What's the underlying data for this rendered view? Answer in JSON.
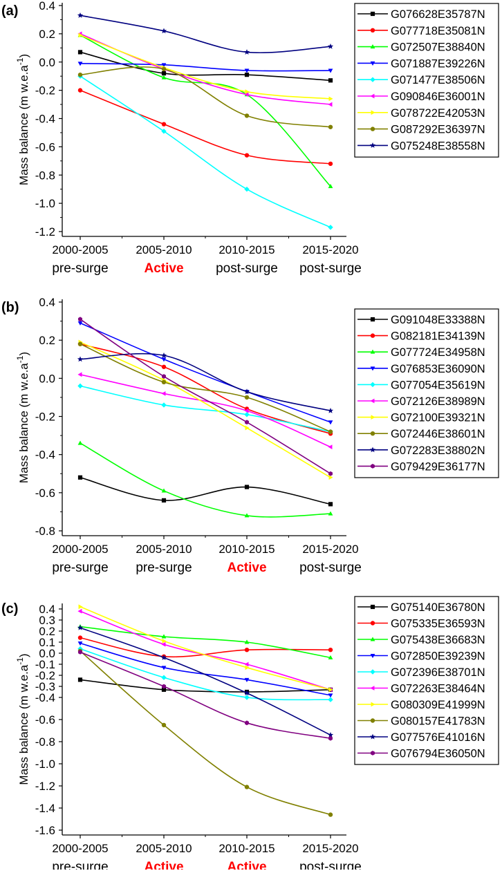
{
  "figure": {
    "background": "#ffffff"
  },
  "chart_data": [
    {
      "type": "line",
      "panel_label": "(a)",
      "categories": [
        "2000-2005",
        "2005-2010",
        "2010-2015",
        "2015-2020"
      ],
      "phases": [
        "pre-surge",
        "Active",
        "post-surge",
        "post-surge"
      ],
      "ylabel_main": "Mass balance (m w.e.a",
      "ylabel_sup": "-1",
      "ylabel_close": ")",
      "ylim": [
        -1.2,
        0.4
      ],
      "yticks": [
        "0.4",
        "0.2",
        "0.0",
        "-0.2",
        "-0.4",
        "-0.6",
        "-0.8",
        "-1.0",
        "-1.2"
      ],
      "series": [
        {
          "name": "G076628E35787N",
          "color": "#000000",
          "marker": "square",
          "values": [
            0.07,
            -0.08,
            -0.09,
            -0.13
          ]
        },
        {
          "name": "G077718E35081N",
          "color": "#ff0000",
          "marker": "circle",
          "values": [
            -0.2,
            -0.44,
            -0.66,
            -0.72
          ]
        },
        {
          "name": "G072507E38840N",
          "color": "#00ff00",
          "marker": "triangle-up",
          "values": [
            0.19,
            -0.11,
            -0.23,
            -0.88
          ]
        },
        {
          "name": "G071887E39226N",
          "color": "#0000ff",
          "marker": "triangle-down",
          "values": [
            -0.01,
            -0.02,
            -0.06,
            -0.06
          ]
        },
        {
          "name": "G071477E38506N",
          "color": "#00ffff",
          "marker": "diamond",
          "values": [
            -0.1,
            -0.49,
            -0.9,
            -1.17
          ]
        },
        {
          "name": "G090846E36001N",
          "color": "#ff00ff",
          "marker": "triangle-left",
          "values": [
            0.2,
            -0.05,
            -0.23,
            -0.3
          ]
        },
        {
          "name": "G078722E42053N",
          "color": "#ffff00",
          "marker": "triangle-right",
          "values": [
            0.19,
            -0.04,
            -0.21,
            -0.26
          ]
        },
        {
          "name": "G087292E36397N",
          "color": "#808000",
          "marker": "circle",
          "values": [
            -0.09,
            -0.05,
            -0.38,
            -0.46
          ]
        },
        {
          "name": "G075248E38558N",
          "color": "#000080",
          "marker": "star",
          "values": [
            0.33,
            0.22,
            0.07,
            0.11
          ]
        }
      ]
    },
    {
      "type": "line",
      "panel_label": "(b)",
      "categories": [
        "2000-2005",
        "2005-2010",
        "2010-2015",
        "2015-2020"
      ],
      "phases": [
        "pre-surge",
        "pre-surge",
        "Active",
        "post-surge"
      ],
      "ylabel_main": "Mass balance (m w.e.a",
      "ylabel_sup": "-1",
      "ylabel_close": ")",
      "ylim": [
        -0.8,
        0.4
      ],
      "yticks": [
        "0.4",
        "0.2",
        "0.0",
        "-0.2",
        "-0.4",
        "-0.6",
        "-0.8"
      ],
      "series": [
        {
          "name": "G091048E33388N",
          "color": "#000000",
          "marker": "square",
          "values": [
            -0.52,
            -0.64,
            -0.57,
            -0.66
          ]
        },
        {
          "name": "G082181E34139N",
          "color": "#ff0000",
          "marker": "circle",
          "values": [
            0.18,
            0.06,
            -0.16,
            -0.29
          ]
        },
        {
          "name": "G077724E34958N",
          "color": "#00ff00",
          "marker": "triangle-up",
          "values": [
            -0.34,
            -0.59,
            -0.72,
            -0.71
          ]
        },
        {
          "name": "G076853E36090N",
          "color": "#0000ff",
          "marker": "triangle-down",
          "values": [
            0.29,
            0.1,
            -0.07,
            -0.23
          ]
        },
        {
          "name": "G077054E35619N",
          "color": "#00ffff",
          "marker": "diamond",
          "values": [
            -0.04,
            -0.14,
            -0.19,
            -0.28
          ]
        },
        {
          "name": "G072126E38989N",
          "color": "#ff00ff",
          "marker": "triangle-left",
          "values": [
            0.02,
            -0.08,
            -0.17,
            -0.36
          ]
        },
        {
          "name": "G072100E39321N",
          "color": "#ffff00",
          "marker": "triangle-right",
          "values": [
            0.19,
            -0.01,
            -0.26,
            -0.52
          ]
        },
        {
          "name": "G072446E38601N",
          "color": "#808000",
          "marker": "circle",
          "values": [
            0.18,
            -0.02,
            -0.1,
            -0.28
          ]
        },
        {
          "name": "G072283E38802N",
          "color": "#000080",
          "marker": "star",
          "values": [
            0.1,
            0.12,
            -0.07,
            -0.17
          ]
        },
        {
          "name": "G079429E36177N",
          "color": "#800080",
          "marker": "hexagon",
          "values": [
            0.31,
            0.01,
            -0.23,
            -0.5
          ]
        }
      ]
    },
    {
      "type": "line",
      "panel_label": "(c)",
      "categories": [
        "2000-2005",
        "2005-2010",
        "2010-2015",
        "2015-2020"
      ],
      "phases": [
        "pre-surge",
        "Active",
        "Active",
        "post-surge"
      ],
      "ylabel_main": "Mass balance (m w.e.a",
      "ylabel_sup": "-1",
      "ylabel_close": ")",
      "ylim": [
        -1.6,
        0.4
      ],
      "yticks": [
        "0.4",
        "0.3",
        "0.2",
        "0.1",
        "0.0",
        "-0.1",
        "-0.2",
        "-0.3",
        "-0.4",
        "-0.6",
        "-0.8",
        "-1.0",
        "-1.2",
        "-1.4",
        "-1.6"
      ],
      "series": [
        {
          "name": "G075140E36780N",
          "color": "#000000",
          "marker": "square",
          "values": [
            -0.24,
            -0.33,
            -0.35,
            -0.33
          ]
        },
        {
          "name": "G075335E36593N",
          "color": "#ff0000",
          "marker": "circle",
          "values": [
            0.14,
            -0.03,
            0.03,
            0.03
          ]
        },
        {
          "name": "G075438E36683N",
          "color": "#00ff00",
          "marker": "triangle-up",
          "values": [
            0.24,
            0.15,
            0.1,
            -0.04
          ]
        },
        {
          "name": "G072850E39239N",
          "color": "#0000ff",
          "marker": "triangle-down",
          "values": [
            0.09,
            -0.13,
            -0.24,
            -0.38
          ]
        },
        {
          "name": "G072396E38701N",
          "color": "#00ffff",
          "marker": "diamond",
          "values": [
            0.04,
            -0.22,
            -0.4,
            -0.42
          ]
        },
        {
          "name": "G072263E38464N",
          "color": "#ff00ff",
          "marker": "triangle-left",
          "values": [
            0.38,
            0.08,
            -0.1,
            -0.33
          ]
        },
        {
          "name": "G080309E41999N",
          "color": "#ffff00",
          "marker": "triangle-right",
          "values": [
            0.42,
            0.11,
            -0.13,
            -0.33
          ]
        },
        {
          "name": "G080157E41783N",
          "color": "#808000",
          "marker": "circle",
          "values": [
            0.02,
            -0.65,
            -1.21,
            -1.46
          ]
        },
        {
          "name": "G077576E41016N",
          "color": "#000080",
          "marker": "star",
          "values": [
            0.23,
            -0.04,
            -0.36,
            -0.74
          ]
        },
        {
          "name": "G076794E36050N",
          "color": "#800080",
          "marker": "hexagon",
          "values": [
            0.01,
            -0.3,
            -0.63,
            -0.77
          ]
        }
      ]
    }
  ]
}
